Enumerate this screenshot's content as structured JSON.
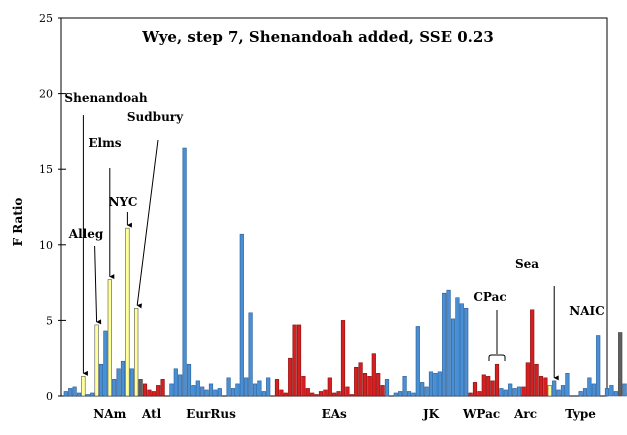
{
  "chart_data": {
    "type": "bar",
    "title": "Wye, step 7, Shenandoah added, SSE 0.23",
    "ylabel": "F Ratio",
    "xlabel": "",
    "ylim": [
      0,
      25
    ],
    "yticks": [
      0,
      5,
      10,
      15,
      20,
      25
    ],
    "grid": false,
    "colors": {
      "blue": "#4a8fd4",
      "red": "#d42020",
      "yellow": "#ffff99",
      "gray": "#606060",
      "outline": "#404040"
    },
    "bars": [
      {
        "v": 0.3,
        "c": "blue"
      },
      {
        "v": 0.5,
        "c": "blue"
      },
      {
        "v": 0.6,
        "c": "blue"
      },
      {
        "v": 0.2,
        "c": "blue"
      },
      {
        "v": 1.3,
        "c": "yellow"
      },
      {
        "v": 0.1,
        "c": "blue"
      },
      {
        "v": 0.2,
        "c": "blue"
      },
      {
        "v": 4.7,
        "c": "yellow"
      },
      {
        "v": 2.1,
        "c": "blue"
      },
      {
        "v": 4.3,
        "c": "blue"
      },
      {
        "v": 7.7,
        "c": "yellow"
      },
      {
        "v": 1.1,
        "c": "blue"
      },
      {
        "v": 1.8,
        "c": "blue"
      },
      {
        "v": 2.3,
        "c": "blue"
      },
      {
        "v": 11.1,
        "c": "yellow"
      },
      {
        "v": 1.8,
        "c": "blue"
      },
      {
        "v": 5.8,
        "c": "yellow"
      },
      {
        "v": 1.1,
        "c": "gray"
      },
      {
        "v": 0.8,
        "c": "red"
      },
      {
        "v": 0.4,
        "c": "red"
      },
      {
        "v": 0.3,
        "c": "red"
      },
      {
        "v": 0.7,
        "c": "red"
      },
      {
        "v": 1.1,
        "c": "red"
      },
      {
        "v": 0.0,
        "c": "blue"
      },
      {
        "v": 0.8,
        "c": "blue"
      },
      {
        "v": 1.8,
        "c": "blue"
      },
      {
        "v": 1.4,
        "c": "blue"
      },
      {
        "v": 16.4,
        "c": "blue"
      },
      {
        "v": 2.1,
        "c": "blue"
      },
      {
        "v": 0.7,
        "c": "blue"
      },
      {
        "v": 1.0,
        "c": "blue"
      },
      {
        "v": 0.6,
        "c": "blue"
      },
      {
        "v": 0.4,
        "c": "blue"
      },
      {
        "v": 0.8,
        "c": "blue"
      },
      {
        "v": 0.4,
        "c": "blue"
      },
      {
        "v": 0.5,
        "c": "blue"
      },
      {
        "v": 0.0,
        "c": "blue"
      },
      {
        "v": 1.2,
        "c": "blue"
      },
      {
        "v": 0.5,
        "c": "blue"
      },
      {
        "v": 0.8,
        "c": "blue"
      },
      {
        "v": 10.7,
        "c": "blue"
      },
      {
        "v": 1.2,
        "c": "blue"
      },
      {
        "v": 5.5,
        "c": "blue"
      },
      {
        "v": 0.8,
        "c": "blue"
      },
      {
        "v": 1.0,
        "c": "blue"
      },
      {
        "v": 0.3,
        "c": "blue"
      },
      {
        "v": 1.2,
        "c": "blue"
      },
      {
        "v": 0.0,
        "c": "red"
      },
      {
        "v": 1.1,
        "c": "red"
      },
      {
        "v": 0.4,
        "c": "red"
      },
      {
        "v": 0.2,
        "c": "red"
      },
      {
        "v": 2.5,
        "c": "red"
      },
      {
        "v": 4.7,
        "c": "red"
      },
      {
        "v": 4.7,
        "c": "red"
      },
      {
        "v": 1.3,
        "c": "red"
      },
      {
        "v": 0.5,
        "c": "red"
      },
      {
        "v": 0.2,
        "c": "red"
      },
      {
        "v": 0.1,
        "c": "red"
      },
      {
        "v": 0.3,
        "c": "red"
      },
      {
        "v": 0.4,
        "c": "red"
      },
      {
        "v": 1.2,
        "c": "red"
      },
      {
        "v": 0.2,
        "c": "red"
      },
      {
        "v": 0.3,
        "c": "red"
      },
      {
        "v": 5.0,
        "c": "red"
      },
      {
        "v": 0.6,
        "c": "red"
      },
      {
        "v": 0.1,
        "c": "red"
      },
      {
        "v": 1.9,
        "c": "red"
      },
      {
        "v": 2.2,
        "c": "red"
      },
      {
        "v": 1.5,
        "c": "red"
      },
      {
        "v": 1.3,
        "c": "red"
      },
      {
        "v": 2.8,
        "c": "red"
      },
      {
        "v": 1.5,
        "c": "red"
      },
      {
        "v": 0.7,
        "c": "red"
      },
      {
        "v": 1.1,
        "c": "blue"
      },
      {
        "v": 0.0,
        "c": "blue"
      },
      {
        "v": 0.2,
        "c": "blue"
      },
      {
        "v": 0.3,
        "c": "blue"
      },
      {
        "v": 1.3,
        "c": "blue"
      },
      {
        "v": 0.3,
        "c": "blue"
      },
      {
        "v": 0.2,
        "c": "blue"
      },
      {
        "v": 4.6,
        "c": "blue"
      },
      {
        "v": 0.9,
        "c": "blue"
      },
      {
        "v": 0.6,
        "c": "blue"
      },
      {
        "v": 1.6,
        "c": "blue"
      },
      {
        "v": 1.5,
        "c": "blue"
      },
      {
        "v": 1.6,
        "c": "blue"
      },
      {
        "v": 6.8,
        "c": "blue"
      },
      {
        "v": 7.0,
        "c": "blue"
      },
      {
        "v": 5.1,
        "c": "blue"
      },
      {
        "v": 6.5,
        "c": "blue"
      },
      {
        "v": 6.1,
        "c": "blue"
      },
      {
        "v": 5.8,
        "c": "blue"
      },
      {
        "v": 0.2,
        "c": "red"
      },
      {
        "v": 0.9,
        "c": "red"
      },
      {
        "v": 0.3,
        "c": "red"
      },
      {
        "v": 1.4,
        "c": "red"
      },
      {
        "v": 1.3,
        "c": "red"
      },
      {
        "v": 1.0,
        "c": "red"
      },
      {
        "v": 2.1,
        "c": "red"
      },
      {
        "v": 0.5,
        "c": "blue"
      },
      {
        "v": 0.4,
        "c": "blue"
      },
      {
        "v": 0.8,
        "c": "blue"
      },
      {
        "v": 0.5,
        "c": "blue"
      },
      {
        "v": 0.6,
        "c": "blue"
      },
      {
        "v": 0.6,
        "c": "red"
      },
      {
        "v": 2.2,
        "c": "red"
      },
      {
        "v": 5.7,
        "c": "red"
      },
      {
        "v": 2.1,
        "c": "red"
      },
      {
        "v": 1.3,
        "c": "red"
      },
      {
        "v": 1.2,
        "c": "red"
      },
      {
        "v": 0.7,
        "c": "yellow"
      },
      {
        "v": 1.0,
        "c": "blue"
      },
      {
        "v": 0.4,
        "c": "blue"
      },
      {
        "v": 0.7,
        "c": "blue"
      },
      {
        "v": 1.5,
        "c": "blue"
      },
      {
        "v": 0.0,
        "c": "blue"
      },
      {
        "v": 0.0,
        "c": "blue"
      },
      {
        "v": 0.3,
        "c": "blue"
      },
      {
        "v": 0.5,
        "c": "blue"
      },
      {
        "v": 1.2,
        "c": "blue"
      },
      {
        "v": 0.8,
        "c": "blue"
      },
      {
        "v": 4.0,
        "c": "blue"
      },
      {
        "v": 0.0,
        "c": "blue"
      },
      {
        "v": 0.5,
        "c": "blue"
      },
      {
        "v": 0.7,
        "c": "blue"
      },
      {
        "v": 0.3,
        "c": "blue"
      },
      {
        "v": 4.2,
        "c": "gray"
      },
      {
        "v": 0.8,
        "c": "blue"
      },
      {
        "v": 0.2,
        "c": "blue"
      },
      {
        "v": 0.2,
        "c": "blue"
      }
    ],
    "groups": [
      {
        "label": "NAm",
        "at": 10
      },
      {
        "label": "Atl",
        "at": 19.5
      },
      {
        "label": "EurRus",
        "at": 33
      },
      {
        "label": "EAs",
        "at": 61
      },
      {
        "label": "JK",
        "at": 83
      },
      {
        "label": "WPac",
        "at": 94.5
      },
      {
        "label": "Arc",
        "at": 104.5
      },
      {
        "label": "Type",
        "at": 117
      }
    ],
    "annotations": [
      {
        "label": "Shenandoah",
        "bar": 4
      },
      {
        "label": "Alleg",
        "bar": 7
      },
      {
        "label": "Elms",
        "bar": 10
      },
      {
        "label": "NYC",
        "bar": 14
      },
      {
        "label": "Sudbury",
        "bar": 16
      },
      {
        "label": "CPac",
        "bar": 98
      },
      {
        "label": "Sea",
        "bar": 111
      },
      {
        "label": "NAIC",
        "bar": 123
      }
    ]
  }
}
